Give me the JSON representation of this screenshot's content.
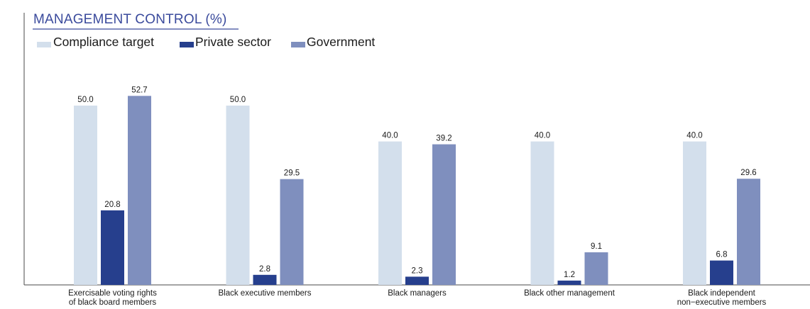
{
  "chart_data": {
    "type": "bar",
    "title": "MANAGEMENT CONTROL (%)",
    "categories": [
      [
        "Exercisable voting rights",
        "of black board members"
      ],
      [
        "Black executive members"
      ],
      [
        "Black managers"
      ],
      [
        "Black other management"
      ],
      [
        "Black independent",
        "non−executive members"
      ]
    ],
    "series": [
      {
        "name": "Compliance target",
        "color": "#d3dfec",
        "values": [
          50.0,
          50.0,
          40.0,
          40.0,
          40.0
        ],
        "labels": [
          "50.0",
          "50.0",
          "40.0",
          "40.0",
          "40.0"
        ]
      },
      {
        "name": "Private sector",
        "color": "#263f8d",
        "values": [
          20.8,
          2.8,
          2.3,
          1.2,
          6.8
        ],
        "labels": [
          "20.8",
          "2.8",
          "2.3",
          "1.2",
          "6.8"
        ]
      },
      {
        "name": "Government",
        "color": "#7f8fbe",
        "values": [
          52.7,
          29.5,
          39.2,
          9.1,
          29.6
        ],
        "labels": [
          "52.7",
          "29.5",
          "39.2",
          "9.1",
          "29.6"
        ]
      }
    ],
    "ylim": [
      0,
      55
    ],
    "legend": "top-left",
    "grid": false
  }
}
